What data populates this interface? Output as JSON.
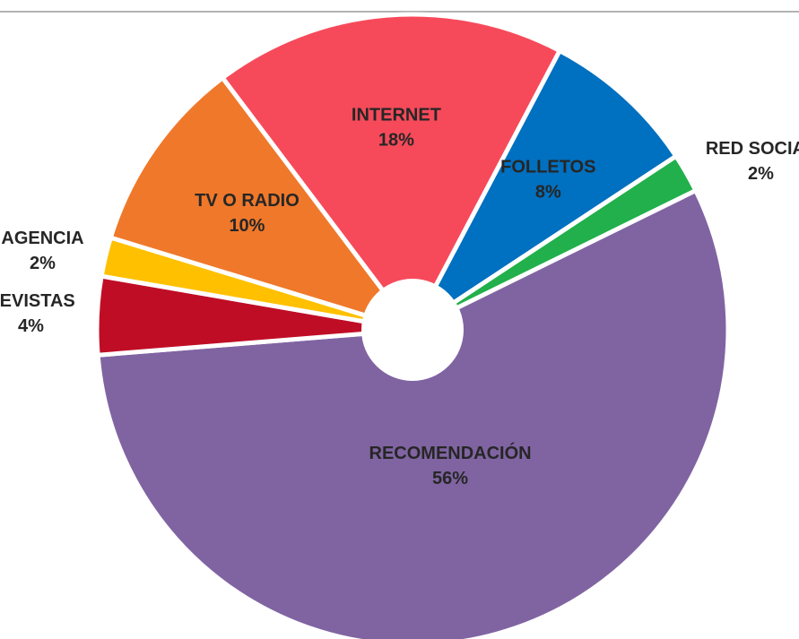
{
  "chart_data": {
    "type": "pie",
    "categories": [
      "INTERNET",
      "FOLLETOS",
      "RED SOCIAL",
      "RECOMENDACIÓN",
      "REVISTAS",
      "AGENCIA",
      "TV O RADIO"
    ],
    "values": [
      18,
      8,
      2,
      56,
      4,
      2,
      10
    ],
    "value_labels": [
      "18%",
      "8%",
      "2%",
      "56%",
      "4%",
      "2%",
      "10%"
    ],
    "colors": [
      "#f64a5a",
      "#0070c0",
      "#21b04b",
      "#8064a2",
      "#c00d26",
      "#ffc000",
      "#f0782a"
    ]
  }
}
